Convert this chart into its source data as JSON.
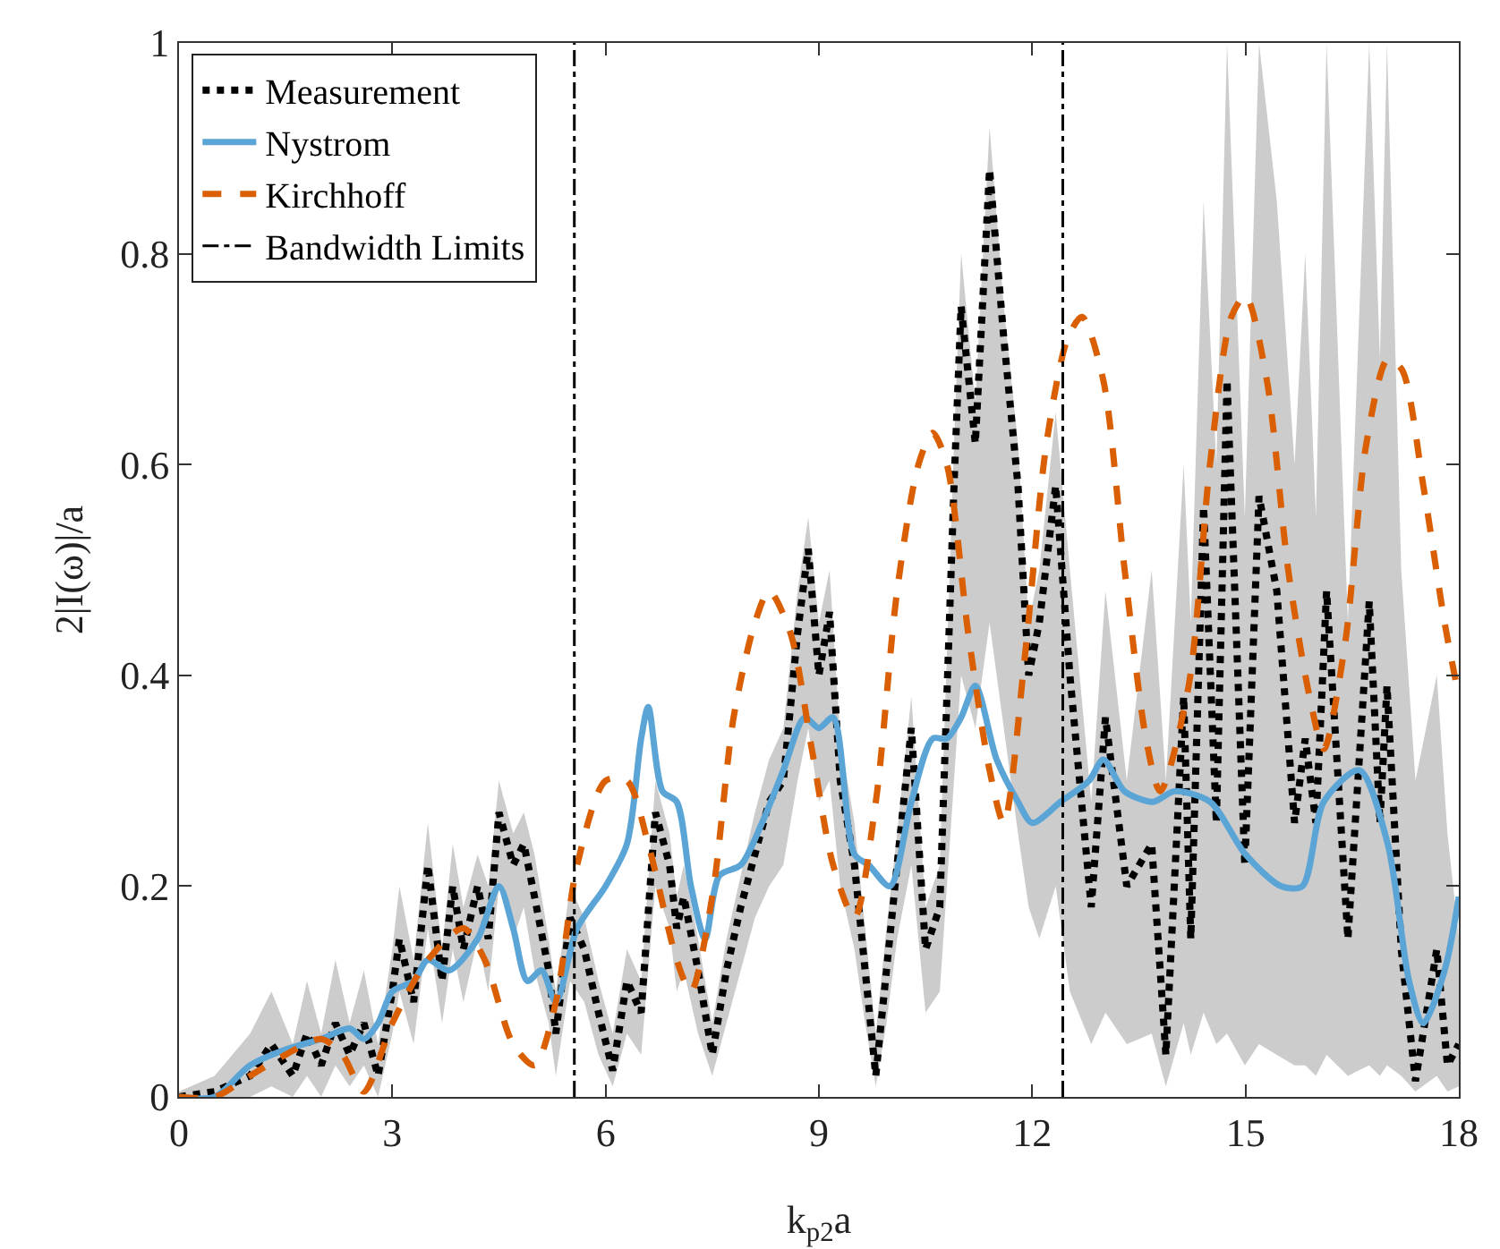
{
  "chart_data": {
    "type": "line",
    "xlabel": "k$_{p2}$a",
    "ylabel": "2|I(ω)|/a",
    "xlim": [
      0,
      18
    ],
    "xticks": [
      0,
      3,
      6,
      9,
      12,
      15,
      18
    ],
    "ylim": [
      0,
      1
    ],
    "yticks": [
      0,
      0.2,
      0.4,
      0.6,
      0.8,
      1
    ],
    "grid": false,
    "legend": "top left",
    "series": [
      {
        "name": "Measurement",
        "color": "#000000",
        "line_style": "dotted",
        "x": [
          0,
          0.5,
          1.0,
          1.3,
          1.6,
          1.8,
          2.0,
          2.2,
          2.4,
          2.6,
          2.8,
          3.0,
          3.1,
          3.3,
          3.5,
          3.7,
          3.85,
          4.0,
          4.2,
          4.35,
          4.5,
          4.7,
          4.85,
          5.0,
          5.2,
          5.3,
          5.5,
          5.7,
          5.9,
          6.1,
          6.3,
          6.5,
          6.7,
          6.9,
          7.0,
          7.1,
          7.3,
          7.5,
          7.7,
          7.9,
          8.1,
          8.3,
          8.5,
          8.7,
          8.85,
          9.0,
          9.15,
          9.3,
          9.5,
          9.65,
          9.8,
          9.95,
          10.1,
          10.3,
          10.5,
          10.7,
          10.9,
          11.0,
          11.2,
          11.4,
          11.6,
          11.8,
          11.95,
          12.1,
          12.33,
          12.53,
          12.83,
          13.03,
          13.33,
          13.68,
          13.88,
          14.13,
          14.23,
          14.41,
          14.59,
          14.74,
          14.99,
          15.19,
          15.44,
          15.69,
          15.84,
          15.99,
          16.14,
          16.44,
          16.74,
          16.89,
          16.99,
          17.19,
          17.39,
          17.69,
          17.84,
          18
        ],
        "values": [
          0,
          0.005,
          0.02,
          0.05,
          0.02,
          0.06,
          0.03,
          0.07,
          0.04,
          0.07,
          0.02,
          0.1,
          0.15,
          0.09,
          0.22,
          0.11,
          0.2,
          0.14,
          0.2,
          0.15,
          0.27,
          0.22,
          0.24,
          0.19,
          0.12,
          0.06,
          0.17,
          0.14,
          0.08,
          0.025,
          0.11,
          0.08,
          0.27,
          0.22,
          0.16,
          0.19,
          0.12,
          0.04,
          0.12,
          0.18,
          0.23,
          0.28,
          0.3,
          0.44,
          0.52,
          0.4,
          0.46,
          0.3,
          0.22,
          0.12,
          0.02,
          0.12,
          0.22,
          0.35,
          0.14,
          0.18,
          0.58,
          0.75,
          0.62,
          0.88,
          0.72,
          0.58,
          0.4,
          0.45,
          0.58,
          0.4,
          0.18,
          0.36,
          0.2,
          0.24,
          0.04,
          0.38,
          0.15,
          0.56,
          0.26,
          0.68,
          0.22,
          0.57,
          0.48,
          0.26,
          0.34,
          0.26,
          0.48,
          0.15,
          0.47,
          0.26,
          0.39,
          0.14,
          0.015,
          0.14,
          0.03,
          0.05
        ],
        "upper": [
          0.005,
          0.02,
          0.06,
          0.1,
          0.05,
          0.11,
          0.06,
          0.13,
          0.07,
          0.12,
          0.05,
          0.14,
          0.2,
          0.13,
          0.26,
          0.14,
          0.24,
          0.18,
          0.23,
          0.2,
          0.3,
          0.25,
          0.27,
          0.23,
          0.15,
          0.1,
          0.2,
          0.17,
          0.11,
          0.06,
          0.14,
          0.11,
          0.3,
          0.25,
          0.19,
          0.22,
          0.15,
          0.07,
          0.15,
          0.21,
          0.27,
          0.32,
          0.35,
          0.48,
          0.55,
          0.45,
          0.5,
          0.34,
          0.26,
          0.16,
          0.06,
          0.16,
          0.25,
          0.38,
          0.18,
          0.22,
          0.62,
          0.8,
          0.66,
          0.92,
          0.75,
          0.62,
          0.45,
          0.5,
          0.65,
          0.5,
          0.28,
          0.48,
          0.3,
          0.5,
          0.3,
          0.6,
          0.45,
          0.85,
          0.6,
          1,
          0.55,
          1,
          0.85,
          0.6,
          0.8,
          0.55,
          1,
          0.45,
          1,
          0.7,
          1,
          0.5,
          0.3,
          0.4,
          0.25,
          0.15
        ],
        "lower": [
          0,
          0,
          0,
          0.01,
          0,
          0.02,
          0,
          0.03,
          0.01,
          0.03,
          0,
          0.06,
          0.1,
          0.05,
          0.16,
          0.07,
          0.14,
          0.09,
          0.15,
          0.1,
          0.2,
          0.15,
          0.18,
          0.12,
          0.07,
          0.02,
          0.11,
          0.09,
          0.04,
          0.01,
          0.06,
          0.04,
          0.2,
          0.16,
          0.1,
          0.12,
          0.06,
          0.02,
          0.07,
          0.12,
          0.17,
          0.2,
          0.22,
          0.3,
          0.35,
          0.28,
          0.3,
          0.2,
          0.14,
          0.07,
          0.01,
          0.07,
          0.15,
          0.22,
          0.08,
          0.1,
          0.3,
          0.4,
          0.35,
          0.45,
          0.35,
          0.25,
          0.18,
          0.15,
          0.2,
          0.1,
          0.05,
          0.08,
          0.05,
          0.06,
          0.01,
          0.07,
          0.04,
          0.08,
          0.05,
          0.06,
          0.03,
          0.05,
          0.04,
          0.03,
          0.03,
          0.02,
          0.04,
          0.02,
          0.03,
          0.02,
          0.03,
          0.02,
          0.005,
          0.02,
          0.005,
          0.01
        ]
      },
      {
        "name": "Nystrom",
        "color": "#5aa5d6",
        "line_style": "solid",
        "x": [
          0,
          0.5,
          1,
          1.5,
          2,
          2.4,
          2.6,
          2.8,
          3.0,
          3.3,
          3.5,
          3.8,
          4.2,
          4.5,
          4.7,
          4.9,
          5.1,
          5.3,
          5.6,
          6.0,
          6.3,
          6.5,
          6.6,
          6.8,
          7.0,
          7.2,
          7.4,
          7.6,
          7.9,
          8.2,
          8.5,
          8.8,
          9.0,
          9.2,
          9.5,
          9.7,
          10.0,
          10.3,
          10.6,
          10.8,
          11.0,
          11.2,
          11.5,
          11.8,
          12.0,
          12.4,
          12.8,
          13.0,
          13.3,
          13.7,
          14.0,
          14.5,
          15.0,
          15.5,
          15.8,
          16.1,
          16.6,
          17.0,
          17.3,
          17.5,
          17.8,
          18
        ],
        "values": [
          0,
          0,
          0.03,
          0.045,
          0.055,
          0.065,
          0.055,
          0.07,
          0.1,
          0.11,
          0.13,
          0.12,
          0.15,
          0.2,
          0.16,
          0.11,
          0.12,
          0.09,
          0.16,
          0.2,
          0.24,
          0.34,
          0.37,
          0.29,
          0.28,
          0.2,
          0.15,
          0.21,
          0.22,
          0.26,
          0.31,
          0.36,
          0.35,
          0.36,
          0.23,
          0.22,
          0.2,
          0.28,
          0.34,
          0.34,
          0.36,
          0.39,
          0.32,
          0.28,
          0.26,
          0.28,
          0.3,
          0.32,
          0.29,
          0.28,
          0.29,
          0.28,
          0.23,
          0.2,
          0.2,
          0.28,
          0.31,
          0.24,
          0.11,
          0.07,
          0.12,
          0.19
        ]
      },
      {
        "name": "Kirchhoff",
        "color": "#d95f02",
        "line_style": "dashed",
        "x": [
          0,
          0.5,
          1,
          1.5,
          2.0,
          2.3,
          2.6,
          3.0,
          3.5,
          4.0,
          4.3,
          4.7,
          5.0,
          5.3,
          5.6,
          6.0,
          6.3,
          6.6,
          7.0,
          7.2,
          7.5,
          7.8,
          8.1,
          8.3,
          8.6,
          8.9,
          9.2,
          9.5,
          9.8,
          10.1,
          10.4,
          10.6,
          10.8,
          11.1,
          11.4,
          11.6,
          11.9,
          12.2,
          12.5,
          12.7,
          13.0,
          13.3,
          13.6,
          13.8,
          14.2,
          14.5,
          14.8,
          15.0,
          15.3,
          15.6,
          15.9,
          16.1,
          16.4,
          16.7,
          17.0,
          17.2,
          17.5,
          17.8,
          18
        ],
        "values": [
          0,
          0,
          0.02,
          0.04,
          0.055,
          0.04,
          0.005,
          0.07,
          0.13,
          0.16,
          0.13,
          0.05,
          0.03,
          0.09,
          0.22,
          0.3,
          0.3,
          0.24,
          0.13,
          0.1,
          0.19,
          0.36,
          0.45,
          0.48,
          0.44,
          0.33,
          0.22,
          0.17,
          0.28,
          0.48,
          0.6,
          0.63,
          0.6,
          0.44,
          0.31,
          0.26,
          0.42,
          0.62,
          0.72,
          0.74,
          0.68,
          0.5,
          0.34,
          0.29,
          0.39,
          0.6,
          0.74,
          0.76,
          0.68,
          0.5,
          0.38,
          0.33,
          0.43,
          0.62,
          0.7,
          0.69,
          0.58,
          0.45,
          0.38
        ]
      }
    ],
    "ref_lines": [
      {
        "axis": "x",
        "value": 5.56,
        "label": "Bandwidth Limits",
        "color": "#000000",
        "line_style": "dashdot"
      },
      {
        "axis": "x",
        "value": 12.43,
        "color": "#000000",
        "line_style": "dashdot"
      }
    ]
  }
}
